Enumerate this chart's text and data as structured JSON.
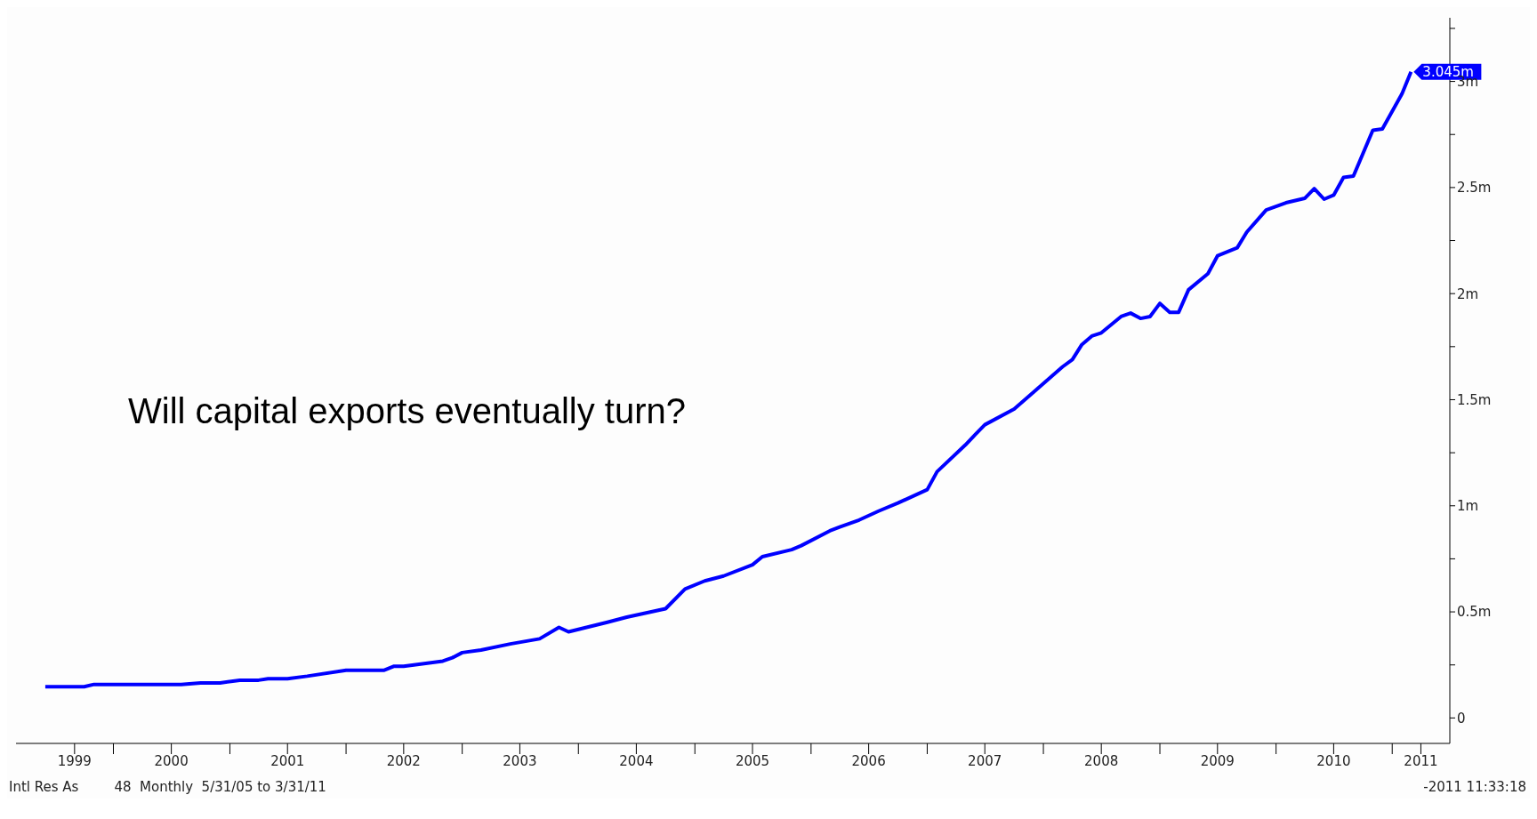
{
  "chart_data": {
    "type": "line",
    "title": "Will capital exports eventually turn?",
    "x": [
      "1999-06",
      "1999-10",
      "1999-11",
      "2000-08",
      "2000-10",
      "2000-12",
      "2001-02",
      "2001-04",
      "2001-05",
      "2001-07",
      "2001-09",
      "2002-01",
      "2002-05",
      "2002-06",
      "2002-07",
      "2002-11",
      "2002-12",
      "2003-01",
      "2003-03",
      "2003-06",
      "2003-09",
      "2003-11",
      "2003-12",
      "2004-04",
      "2004-06",
      "2004-10",
      "2004-12",
      "2005-02",
      "2005-04",
      "2005-07",
      "2005-08",
      "2005-11",
      "2005-12",
      "2006-03",
      "2006-04",
      "2006-06",
      "2006-08",
      "2006-10",
      "2007-01",
      "2007-02",
      "2007-05",
      "2007-06",
      "2007-07",
      "2007-10",
      "2007-12",
      "2008-03",
      "2008-04",
      "2008-05",
      "2008-06",
      "2008-07",
      "2008-09",
      "2008-10",
      "2008-11",
      "2008-12",
      "2009-01",
      "2009-02",
      "2009-03",
      "2009-04",
      "2009-06",
      "2009-07",
      "2009-09",
      "2009-10",
      "2009-12",
      "2010-02",
      "2010-04",
      "2010-05",
      "2010-06",
      "2010-07",
      "2010-08",
      "2010-09",
      "2010-11",
      "2010-12",
      "2011-02",
      "2011-03"
    ],
    "series": [
      {
        "color": "#0000ff",
        "values": [
          0.147,
          0.147,
          0.158,
          0.158,
          0.165,
          0.165,
          0.178,
          0.178,
          0.185,
          0.185,
          0.197,
          0.225,
          0.225,
          0.244,
          0.244,
          0.268,
          0.284,
          0.308,
          0.32,
          0.349,
          0.373,
          0.427,
          0.406,
          0.451,
          0.475,
          0.515,
          0.608,
          0.646,
          0.669,
          0.722,
          0.76,
          0.793,
          0.812,
          0.882,
          0.9,
          0.933,
          0.975,
          1.013,
          1.076,
          1.161,
          1.287,
          1.336,
          1.382,
          1.456,
          1.536,
          1.655,
          1.689,
          1.76,
          1.8,
          1.815,
          1.892,
          1.908,
          1.883,
          1.892,
          1.954,
          1.912,
          1.912,
          2.018,
          2.094,
          2.178,
          2.216,
          2.29,
          2.394,
          2.428,
          2.449,
          2.495,
          2.445,
          2.464,
          2.548,
          2.554,
          2.77,
          2.776,
          2.943,
          3.045
        ]
      }
    ],
    "xlim": [
      "1999-03",
      "2011-07"
    ],
    "xticks": [
      {
        "value": "1999-09",
        "label": "1999"
      },
      {
        "value": "2000-01",
        "label": null
      },
      {
        "value": "2000-07",
        "label": "2000"
      },
      {
        "value": "2001-01",
        "label": null
      },
      {
        "value": "2001-07",
        "label": "2001"
      },
      {
        "value": "2002-01",
        "label": null
      },
      {
        "value": "2002-07",
        "label": "2002"
      },
      {
        "value": "2003-01",
        "label": null
      },
      {
        "value": "2003-07",
        "label": "2003"
      },
      {
        "value": "2004-01",
        "label": null
      },
      {
        "value": "2004-07",
        "label": "2004"
      },
      {
        "value": "2005-01",
        "label": null
      },
      {
        "value": "2005-07",
        "label": "2005"
      },
      {
        "value": "2006-01",
        "label": null
      },
      {
        "value": "2006-07",
        "label": "2006"
      },
      {
        "value": "2007-01",
        "label": null
      },
      {
        "value": "2007-07",
        "label": "2007"
      },
      {
        "value": "2008-01",
        "label": null
      },
      {
        "value": "2008-07",
        "label": "2008"
      },
      {
        "value": "2009-01",
        "label": null
      },
      {
        "value": "2009-07",
        "label": "2009"
      },
      {
        "value": "2010-01",
        "label": null
      },
      {
        "value": "2010-07",
        "label": "2010"
      },
      {
        "value": "2011-01",
        "label": null
      },
      {
        "value": "2011-04",
        "label": "2011"
      }
    ],
    "ylim": [
      -0.12,
      3.3
    ],
    "yticks": [
      0,
      {
        "value": 0.25,
        "label": null
      },
      {
        "value": 0.5,
        "label": "0.5m"
      },
      {
        "value": 0.75,
        "label": null
      },
      {
        "value": 1,
        "label": "1m"
      },
      {
        "value": 1.25,
        "label": null
      },
      {
        "value": 1.5,
        "label": "1.5m"
      },
      {
        "value": 1.75,
        "label": null
      },
      {
        "value": 2,
        "label": "2m"
      },
      {
        "value": 2.25,
        "label": null
      },
      {
        "value": 2.5,
        "label": "2.5m"
      },
      {
        "value": 2.75,
        "label": null
      },
      {
        "value": 3,
        "label": "3m"
      },
      {
        "value": 3.25,
        "label": null
      }
    ],
    "line_style": "solid",
    "marker": "none",
    "legend": false,
    "annotations": [
      {
        "text": "3.045m",
        "x": "2011-03",
        "y": 3.045
      },
      "Intl Res As",
      "48  Monthly  5/31/05 to 3/31/11",
      "-2011 11:33:18"
    ]
  }
}
